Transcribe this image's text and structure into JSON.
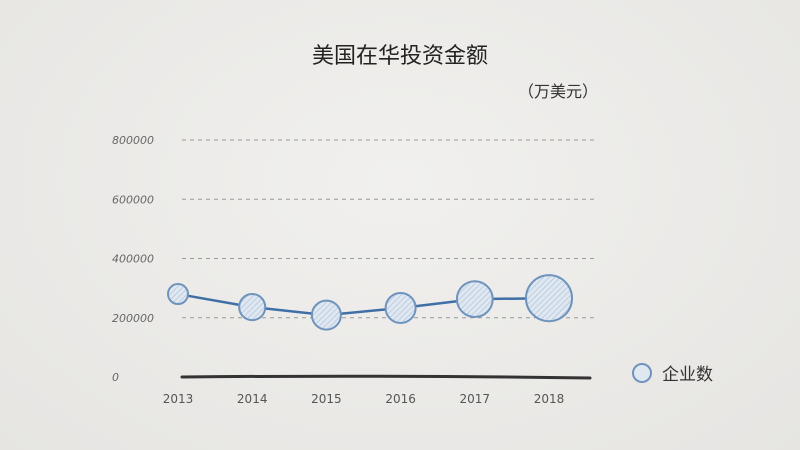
{
  "chart_data": {
    "type": "bubble-line",
    "title": "美国在华投资金额",
    "unit": "（万美元）",
    "categories": [
      "2013",
      "2014",
      "2015",
      "2016",
      "2017",
      "2018"
    ],
    "values": [
      280000,
      236000,
      209000,
      233000,
      263000,
      266000
    ],
    "bubble_size_relative": [
      1.0,
      1.7,
      2.1,
      2.25,
      3.2,
      5.3
    ],
    "ylim": [
      0,
      800000
    ],
    "yticks": [
      "0",
      "200000",
      "400000",
      "600000",
      "800000"
    ],
    "grid": true,
    "legend": {
      "label": "企业数",
      "placement": "right"
    },
    "colors": {
      "line": "#3f6fa6",
      "bubble_stroke": "#6f93bd",
      "bubble_fill": "#dfe7f0",
      "axis": "#333333",
      "grid": "#999999"
    }
  }
}
